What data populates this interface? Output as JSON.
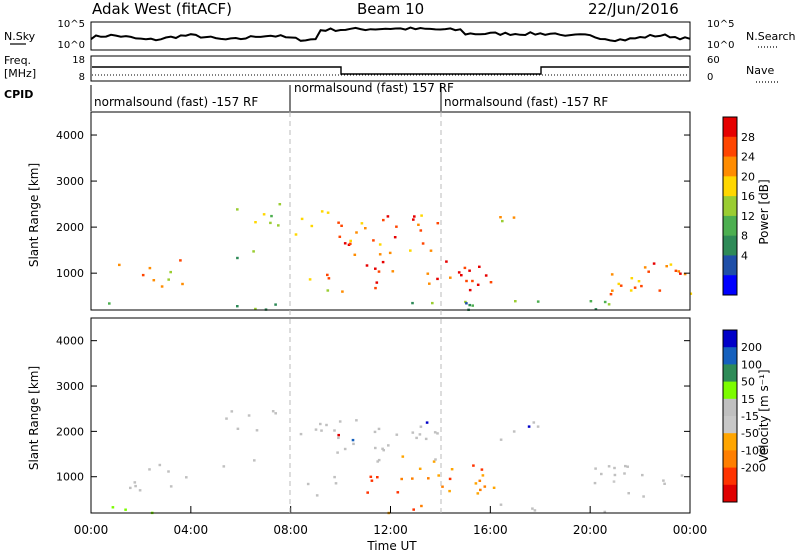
{
  "header": {
    "station": "Adak West (fitACF)",
    "beam": "Beam 10",
    "date": "22/Jun/2016"
  },
  "panels": {
    "nsky": {
      "label": "N.Sky",
      "right_label": "N.Search",
      "ticks": [
        "10^5",
        "10^0"
      ],
      "right_ticks": [
        "10^5",
        "10^0"
      ]
    },
    "freq": {
      "label_line1": "Freq.",
      "label_line2": "[MHz]",
      "ticks": [
        "18",
        "8"
      ],
      "right_label": "Nave",
      "right_ticks": [
        "60",
        "0"
      ]
    },
    "cpid": {
      "label": "CPID",
      "segments": [
        {
          "start": 0,
          "end": 8,
          "text": "normalsound (fast) -157 RF"
        },
        {
          "start": 8,
          "end": 14,
          "text": "normalsound (fast) 157 RF"
        },
        {
          "start": 14,
          "end": 24,
          "text": "normalsound (fast) -157 RF"
        }
      ]
    }
  },
  "colors": {
    "power": [
      "#0000ff",
      "#1f4fa8",
      "#2e8a57",
      "#4caf50",
      "#9acd32",
      "#ffd700",
      "#ff8c00",
      "#ff4500",
      "#e60000"
    ],
    "velocity": [
      "#0000c8",
      "#1560bd",
      "#2e8b57",
      "#7cfc00",
      "#c0c0c0",
      "#c8c8c8",
      "#ffa500",
      "#ff7f00",
      "#ff3300",
      "#e00000"
    ]
  },
  "chart_data": [
    {
      "type": "heatmap",
      "title": "Power",
      "xlabel": "",
      "ylabel": "Slant Range [km]",
      "x_range_hours": [
        0,
        24
      ],
      "ylim": [
        200,
        4500
      ],
      "y_ticks": [
        1000,
        2000,
        3000,
        4000
      ],
      "colorbar": {
        "label": "Power [dB]",
        "ticks": [
          4,
          8,
          12,
          16,
          20,
          24,
          28
        ]
      }
    },
    {
      "type": "heatmap",
      "title": "Velocity",
      "xlabel": "Time UT",
      "ylabel": "Slant Range [km]",
      "x_range_hours": [
        0,
        24
      ],
      "x_ticks": [
        "00:00",
        "04:00",
        "08:00",
        "12:00",
        "16:00",
        "20:00",
        "00:00"
      ],
      "ylim": [
        200,
        4500
      ],
      "y_ticks": [
        1000,
        2000,
        3000,
        4000
      ],
      "colorbar": {
        "label": "Velocity [m s⁻¹]",
        "ticks": [
          200,
          100,
          50,
          15,
          -15,
          -50,
          -100,
          -200
        ]
      }
    }
  ]
}
